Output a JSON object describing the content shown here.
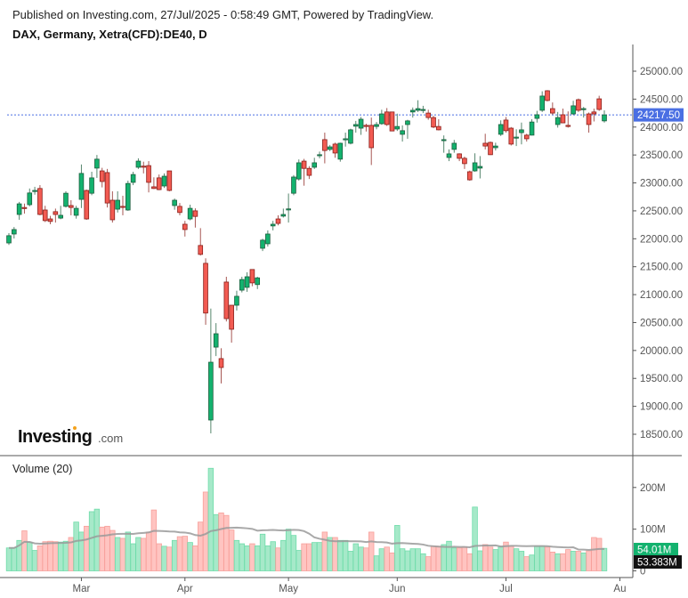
{
  "header": {
    "published": "Published on Investing.com, 27/Jul/2025 - 0:58:49 GMT, Powered by TradingView.",
    "symbol": "DAX, Germany, Xetra(CFD):DE40, D"
  },
  "logo": {
    "main": "Investing",
    "suffix": ".com"
  },
  "colors": {
    "up": "#13b26e",
    "up_border": "#1d5e3e",
    "down": "#f25b52",
    "down_border": "#8a1f1a",
    "vol_up": "#a6e9c9",
    "vol_up_border": "#6fdcaa",
    "vol_down": "#ffc4c1",
    "vol_down_border": "#f7a09b",
    "last_price": "#4a6fe3",
    "ma": "#9a9a9a"
  },
  "chart_data": {
    "type": "candlestick",
    "title": "DAX, Germany, Xetra(CFD):DE40, D",
    "price_axis": {
      "ticks": [
        "25000.00",
        "24500.00",
        "24000.00",
        "23500.00",
        "23000.00",
        "22500.00",
        "22000.00",
        "21500.00",
        "21000.00",
        "20500.00",
        "20000.00",
        "19500.00",
        "19000.00",
        "18500.00"
      ],
      "ylim": [
        18500,
        25000
      ]
    },
    "x_labels": [
      "Mar",
      "Apr",
      "May",
      "Jun",
      "Jul",
      "Au"
    ],
    "x_label_index": [
      14,
      34,
      54,
      75,
      96,
      118
    ],
    "last_price": 24217.5,
    "last_price_label": "24217.50",
    "ohlc": [
      [
        21925,
        22100,
        21890,
        22055
      ],
      [
        22085,
        22210,
        22005,
        22165
      ],
      [
        22435,
        22660,
        22340,
        22625
      ],
      [
        22560,
        22630,
        22450,
        22545
      ],
      [
        22610,
        22900,
        22580,
        22820
      ],
      [
        22850,
        22930,
        22790,
        22865
      ],
      [
        22900,
        22960,
        22420,
        22435
      ],
      [
        22515,
        22590,
        22300,
        22325
      ],
      [
        22355,
        22410,
        22260,
        22310
      ],
      [
        22485,
        22540,
        22290,
        22435
      ],
      [
        22370,
        22590,
        22350,
        22420
      ],
      [
        22580,
        22850,
        22560,
        22815
      ],
      [
        22595,
        22690,
        22420,
        22560
      ],
      [
        22420,
        22590,
        22360,
        22545
      ],
      [
        22705,
        23330,
        22550,
        23170
      ],
      [
        22865,
        22880,
        22340,
        22355
      ],
      [
        22815,
        23200,
        22780,
        23090
      ],
      [
        23265,
        23500,
        23090,
        23425
      ],
      [
        23215,
        23270,
        22920,
        23025
      ],
      [
        23185,
        23250,
        22560,
        22640
      ],
      [
        22690,
        22850,
        22290,
        22340
      ],
      [
        22530,
        22850,
        22470,
        22690
      ],
      [
        22580,
        22770,
        22420,
        22575
      ],
      [
        22515,
        23040,
        22500,
        22990
      ],
      [
        23010,
        23200,
        22960,
        23150
      ],
      [
        23280,
        23440,
        23250,
        23390
      ],
      [
        23300,
        23380,
        23170,
        23295
      ],
      [
        23310,
        23390,
        22830,
        23010
      ],
      [
        22930,
        23100,
        22890,
        22900
      ],
      [
        23090,
        23150,
        22870,
        22880
      ],
      [
        22945,
        23170,
        22910,
        23120
      ],
      [
        23215,
        23215,
        22850,
        22865
      ],
      [
        22595,
        22720,
        22520,
        22690
      ],
      [
        22580,
        22640,
        22420,
        22470
      ],
      [
        22260,
        22320,
        22040,
        22165
      ],
      [
        22355,
        22610,
        22330,
        22545
      ],
      [
        22500,
        22545,
        22200,
        22400
      ],
      [
        21880,
        22190,
        21700,
        21720
      ],
      [
        21560,
        21650,
        20460,
        20670
      ],
      [
        18755,
        20750,
        18515,
        19790
      ],
      [
        20060,
        20490,
        19900,
        20300
      ],
      [
        19855,
        20040,
        19410,
        19695
      ],
      [
        21225,
        21320,
        20520,
        20570
      ],
      [
        20810,
        20810,
        20140,
        20380
      ],
      [
        20810,
        21070,
        20715,
        20970
      ],
      [
        21080,
        21320,
        21040,
        21270
      ],
      [
        21130,
        21400,
        21050,
        21320
      ],
      [
        21450,
        21450,
        21150,
        21210
      ],
      [
        21180,
        21320,
        21100,
        21300
      ],
      [
        21830,
        22000,
        21780,
        21975
      ],
      [
        21910,
        22150,
        21860,
        22085
      ],
      [
        22230,
        22320,
        22150,
        22260
      ],
      [
        22355,
        22420,
        22240,
        22275
      ],
      [
        22405,
        22540,
        22380,
        22435
      ],
      [
        22530,
        22810,
        22290,
        22535
      ],
      [
        22815,
        23140,
        22780,
        23105
      ],
      [
        23070,
        23420,
        23040,
        23360
      ],
      [
        23390,
        23430,
        22950,
        23260
      ],
      [
        23260,
        23300,
        23070,
        23135
      ],
      [
        23280,
        23450,
        23250,
        23360
      ],
      [
        23500,
        23560,
        23440,
        23505
      ],
      [
        23775,
        23900,
        23350,
        23580
      ],
      [
        23600,
        23680,
        23570,
        23645
      ],
      [
        23695,
        23720,
        23450,
        23535
      ],
      [
        23425,
        23720,
        23380,
        23710
      ],
      [
        23790,
        23900,
        23650,
        23790
      ],
      [
        23710,
        23970,
        23690,
        23950
      ],
      [
        24015,
        24110,
        23900,
        24045
      ],
      [
        23980,
        24180,
        23860,
        24140
      ],
      [
        24030,
        24060,
        23920,
        24010
      ],
      [
        24030,
        24170,
        23320,
        23630
      ],
      [
        24010,
        24090,
        23960,
        24045
      ],
      [
        24060,
        24310,
        24040,
        24235
      ],
      [
        24270,
        24340,
        24020,
        24045
      ],
      [
        24270,
        24270,
        23930,
        23930
      ],
      [
        23965,
        24240,
        23930,
        24010
      ],
      [
        23870,
        24030,
        23740,
        23935
      ],
      [
        24045,
        24130,
        23790,
        24110
      ],
      [
        24270,
        24350,
        24170,
        24300
      ],
      [
        24300,
        24480,
        24270,
        24330
      ],
      [
        24310,
        24380,
        24250,
        24315
      ],
      [
        24250,
        24310,
        24130,
        24170
      ],
      [
        24170,
        24200,
        23980,
        24000
      ],
      [
        24010,
        24140,
        23940,
        23950
      ],
      [
        23775,
        23850,
        23540,
        23775
      ],
      [
        23455,
        23600,
        23390,
        23520
      ],
      [
        23600,
        23770,
        23540,
        23710
      ],
      [
        23520,
        23530,
        23390,
        23440
      ],
      [
        23440,
        23470,
        23250,
        23345
      ],
      [
        23200,
        23220,
        23040,
        23055
      ],
      [
        23215,
        23530,
        23200,
        23360
      ],
      [
        23265,
        23480,
        23080,
        23295
      ],
      [
        23710,
        23880,
        23600,
        23660
      ],
      [
        23725,
        23740,
        23500,
        23505
      ],
      [
        23630,
        23720,
        23580,
        23660
      ],
      [
        23870,
        24120,
        23840,
        24045
      ],
      [
        24125,
        24180,
        23900,
        23935
      ],
      [
        23980,
        24000,
        23670,
        23695
      ],
      [
        23820,
        23960,
        23660,
        23820
      ],
      [
        23900,
        24080,
        23690,
        23950
      ],
      [
        23855,
        23880,
        23740,
        23790
      ],
      [
        23855,
        24140,
        23850,
        24090
      ],
      [
        24155,
        24290,
        24080,
        24220
      ],
      [
        24300,
        24640,
        24270,
        24555
      ],
      [
        24650,
        24660,
        24460,
        24475
      ],
      [
        24330,
        24440,
        24220,
        24250
      ],
      [
        24045,
        24270,
        23990,
        24170
      ],
      [
        24220,
        24330,
        24070,
        24075
      ],
      [
        24030,
        24280,
        23990,
        24010
      ],
      [
        24235,
        24470,
        24220,
        24380
      ],
      [
        24490,
        24510,
        24270,
        24300
      ],
      [
        24330,
        24360,
        24170,
        24330
      ],
      [
        24235,
        24260,
        23900,
        24045
      ],
      [
        24270,
        24330,
        24100,
        24235
      ],
      [
        24505,
        24560,
        24290,
        24315
      ],
      [
        24110,
        24300,
        24080,
        24217.5
      ]
    ],
    "volume": {
      "title": "Volume (20)",
      "unit": "M",
      "ticks": [
        "200M",
        "100M",
        "0"
      ],
      "ylim": [
        0,
        250
      ],
      "last_volume_label": "54.01M",
      "ma_label": "53.383M",
      "ma_period": 20,
      "values": [
        55,
        55,
        73,
        96,
        68,
        49,
        60,
        70,
        71,
        70,
        69,
        71,
        80,
        117,
        93,
        107,
        142,
        148,
        105,
        107,
        97,
        80,
        78,
        93,
        65,
        80,
        78,
        93,
        146,
        65,
        59,
        57,
        73,
        82,
        83,
        68,
        60,
        117,
        189,
        246,
        135,
        139,
        133,
        98,
        73,
        65,
        60,
        65,
        60,
        88,
        60,
        70,
        55,
        73,
        100,
        85,
        49,
        65,
        65,
        68,
        68,
        93,
        80,
        80,
        73,
        73,
        47,
        65,
        57,
        55,
        93,
        36,
        53,
        57,
        43,
        109,
        53,
        48,
        53,
        53,
        41,
        34,
        59,
        59,
        63,
        71,
        55,
        55,
        57,
        41,
        153,
        48,
        63,
        57,
        51,
        57,
        69,
        59,
        53,
        47,
        34,
        38,
        59,
        59,
        57,
        45,
        41,
        41,
        51,
        47,
        47,
        43,
        48,
        80,
        78,
        54.01
      ]
    }
  }
}
